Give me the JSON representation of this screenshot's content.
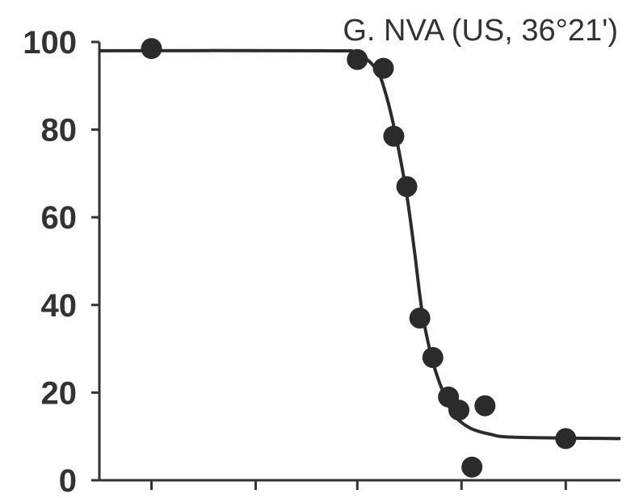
{
  "chart_data": {
    "type": "scatter",
    "title": "G. NVA (US, 36°21')",
    "xlabel": "",
    "ylabel": "",
    "xlim": [
      0,
      100
    ],
    "ylim": [
      0,
      100
    ],
    "y_ticks": [
      0,
      20,
      40,
      60,
      80,
      100
    ],
    "x_ticks": [
      10,
      30,
      49.5,
      69.5,
      89.5
    ],
    "x_tick_labels_visible": false,
    "grid": false,
    "colors": {
      "axis": "#333333",
      "marker": "#2b2b2b",
      "text": "#333333"
    },
    "series": [
      {
        "type": "scatter",
        "points": [
          {
            "x": 10,
            "y": 98.5
          },
          {
            "x": 49.5,
            "y": 96
          },
          {
            "x": 54.5,
            "y": 94
          },
          {
            "x": 56.5,
            "y": 78.5
          },
          {
            "x": 59,
            "y": 67
          },
          {
            "x": 61.5,
            "y": 37
          },
          {
            "x": 64,
            "y": 28
          },
          {
            "x": 67,
            "y": 19
          },
          {
            "x": 69,
            "y": 16
          },
          {
            "x": 71.5,
            "y": 3
          },
          {
            "x": 74,
            "y": 17
          },
          {
            "x": 89.5,
            "y": 9.5
          }
        ]
      },
      {
        "type": "line",
        "fit": "sigmoid",
        "points": [
          {
            "x": 0,
            "y": 98
          },
          {
            "x": 43,
            "y": 98
          },
          {
            "x": 49,
            "y": 97.5
          },
          {
            "x": 53,
            "y": 94
          },
          {
            "x": 55,
            "y": 88
          },
          {
            "x": 57,
            "y": 78
          },
          {
            "x": 59,
            "y": 65
          },
          {
            "x": 60.5,
            "y": 52
          },
          {
            "x": 62,
            "y": 38
          },
          {
            "x": 64,
            "y": 27
          },
          {
            "x": 66,
            "y": 20
          },
          {
            "x": 68,
            "y": 15
          },
          {
            "x": 71,
            "y": 12
          },
          {
            "x": 75,
            "y": 10.5
          },
          {
            "x": 80,
            "y": 9.8
          },
          {
            "x": 100,
            "y": 9.5
          }
        ]
      }
    ]
  }
}
